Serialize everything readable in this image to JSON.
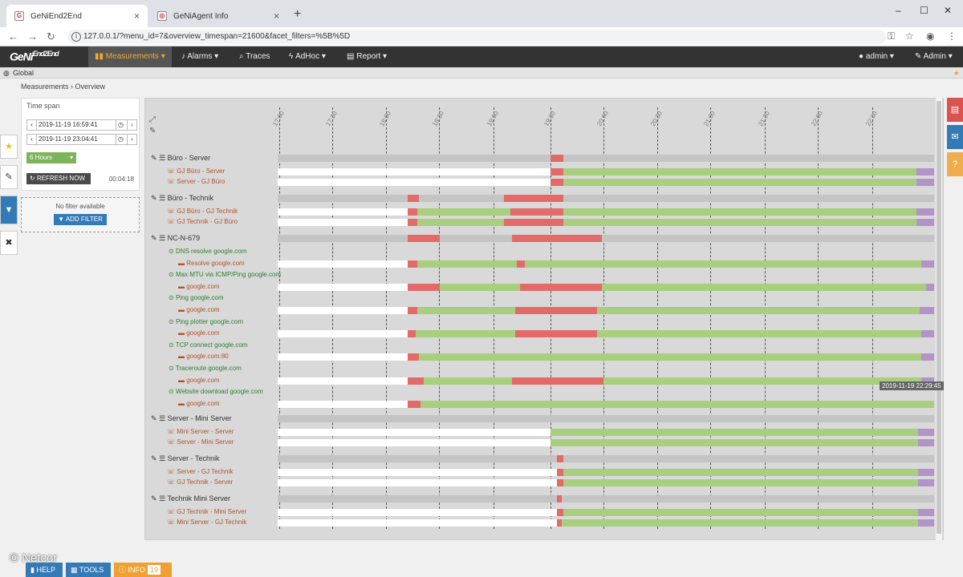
{
  "browser": {
    "tabs": [
      {
        "label": "GeNiEnd2End",
        "active": true
      },
      {
        "label": "GeNiAgent Info",
        "active": false
      }
    ],
    "url": "127.0.0.1/?menu_id=7&overview_timespan=21600&facet_filters=%5B%5D",
    "new_tab_symbol": "+",
    "close_symbol": "×",
    "window_controls": [
      "–",
      "☐",
      "✕"
    ]
  },
  "app": {
    "logo": "GeNi",
    "logo_sup": "End2End",
    "menu": [
      {
        "label": "Measurements ▾",
        "icon": "bar-chart-icon"
      },
      {
        "label": "Alarms ▾",
        "icon": "bell-icon"
      },
      {
        "label": "Traces",
        "icon": "search-icon"
      },
      {
        "label": "AdHoc ▾",
        "icon": "bolt-icon"
      },
      {
        "label": "Report ▾",
        "icon": "report-icon"
      }
    ],
    "user_menu": "admin ▾",
    "admin_menu": "Admin ▾",
    "global": "Global",
    "breadcrumb": [
      "Measurements",
      "Overview"
    ]
  },
  "timespan": {
    "title": "Time span",
    "from": "2019-11-19 16:59:41",
    "to": "2019-11-19 23:04:41",
    "duration": "6 Hours",
    "refresh_label": "REFRESH NOW",
    "countdown": "00:04:18"
  },
  "filter": {
    "no_filter": "No filter available",
    "add_label": "ADD FILTER"
  },
  "timeline": {
    "ticks": [
      "17:00",
      "17:30",
      "18:00",
      "18:30",
      "19:00",
      "19:30",
      "20:00",
      "20:30",
      "21:00",
      "21:30",
      "22:00",
      "22:30"
    ],
    "tooltip": "2019-11-19 22:29:45"
  },
  "groups": [
    {
      "name": "Büro - Server",
      "rows": [
        {
          "label": "GJ Büro - Server",
          "kind": "sub"
        },
        {
          "label": "Server - GJ Büro",
          "kind": "sub"
        }
      ]
    },
    {
      "name": "Büro - Technik",
      "rows": [
        {
          "label": "GJ Büro - GJ Technik",
          "kind": "sub"
        },
        {
          "label": "GJ Technik - GJ Büro",
          "kind": "sub"
        }
      ]
    },
    {
      "name": "NC-N-679",
      "rows": [
        {
          "label": "DNS resolve google.com",
          "kind": "mtr"
        },
        {
          "label": "Resolve google.com",
          "kind": "tgt"
        },
        {
          "label": "Max MTU via ICMP/Ping google.com",
          "kind": "mtr"
        },
        {
          "label": "google.com",
          "kind": "tgt"
        },
        {
          "label": "Ping google.com",
          "kind": "mtr"
        },
        {
          "label": "google.com",
          "kind": "tgt"
        },
        {
          "label": "Ping plotter google.com",
          "kind": "mtr"
        },
        {
          "label": "google.com",
          "kind": "tgt"
        },
        {
          "label": "TCP connect google.com",
          "kind": "mtr"
        },
        {
          "label": "google.com:80",
          "kind": "tgt"
        },
        {
          "label": "Traceroute google.com",
          "kind": "mtr"
        },
        {
          "label": "google.com",
          "kind": "tgt"
        },
        {
          "label": "Website download google.com",
          "kind": "mtr"
        },
        {
          "label": "google.com",
          "kind": "tgt"
        }
      ]
    },
    {
      "name": "Server - Mini Server",
      "rows": [
        {
          "label": "Mini Server - Server",
          "kind": "sub"
        },
        {
          "label": "Server - Mini Server",
          "kind": "sub"
        }
      ]
    },
    {
      "name": "Server - Technik",
      "rows": [
        {
          "label": "Server - GJ Technik",
          "kind": "sub"
        },
        {
          "label": "GJ Technik - Server",
          "kind": "sub"
        }
      ]
    },
    {
      "name": "Technik Mini Server",
      "rows": [
        {
          "label": "GJ Technik - Mini Server",
          "kind": "sub"
        },
        {
          "label": "Mini Server - GJ Technik",
          "kind": "sub"
        }
      ]
    }
  ],
  "footer": {
    "copyright": "© Netcor",
    "help": "HELP",
    "tools": "TOOLS",
    "info": "INFO",
    "info_count": "19"
  },
  "colors": {
    "ok": "#a7cf7d",
    "alarm": "#e46a6a",
    "unknown": "#b394c9",
    "accent": "#f0a830"
  }
}
